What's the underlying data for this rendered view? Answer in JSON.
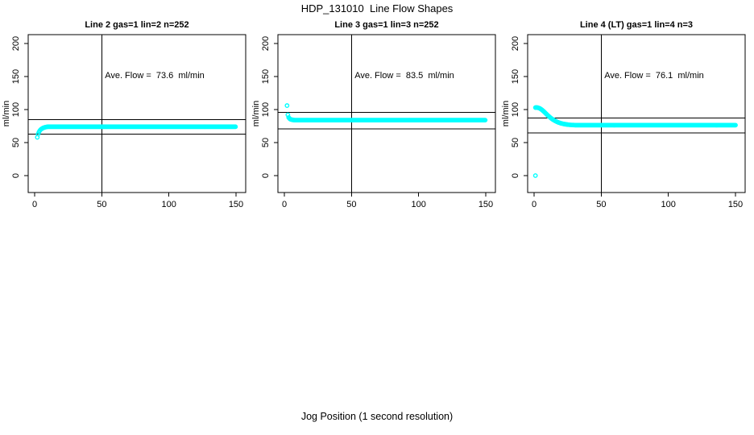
{
  "title": "HDP_131010  Line Flow Shapes",
  "xlabel": "Jog Position (1 second resolution)",
  "colors": {
    "points": "#00FFFF",
    "axis": "#000000",
    "background": "#FFFFFF",
    "text": "#000000"
  },
  "chart_data": [
    {
      "type": "scatter",
      "title": "Line 2 gas=1 lin=2 n=252",
      "annotation": "Ave. Flow =  73.6  ml/min",
      "ave_flow_ml_min": 73.6,
      "n": 252,
      "ylabel": "ml/min",
      "xlim": [
        0,
        150
      ],
      "ylim": [
        0,
        200
      ],
      "xticks": [
        0,
        50,
        100,
        150
      ],
      "yticks": [
        0,
        50,
        100,
        150,
        200
      ],
      "vline_x": 50,
      "ref_lines_y": [
        84.6,
        62.6
      ],
      "marker": "open-circle",
      "outlier_points": [],
      "transient_points": [
        [
          2,
          58
        ],
        [
          2.6,
          63
        ],
        [
          3.2,
          66
        ],
        [
          3.8,
          68
        ],
        [
          4.4,
          69.5
        ],
        [
          5,
          70.5
        ],
        [
          5.6,
          71.3
        ],
        [
          6.2,
          72
        ],
        [
          6.8,
          72.5
        ],
        [
          7.4,
          73
        ],
        [
          8,
          73.3
        ],
        [
          8.6,
          73.6
        ],
        [
          9.2,
          73.8
        ],
        [
          9.8,
          74
        ]
      ],
      "steady_state": {
        "x_start": 10.4,
        "x_end": 150,
        "x_step": 0.6,
        "value": 74
      }
    },
    {
      "type": "scatter",
      "title": "Line 3 gas=1 lin=3 n=252",
      "annotation": "Ave. Flow =  83.5  ml/min",
      "ave_flow_ml_min": 83.5,
      "n": 252,
      "ylabel": "ml/min",
      "xlim": [
        0,
        150
      ],
      "ylim": [
        0,
        200
      ],
      "xticks": [
        0,
        50,
        100,
        150
      ],
      "yticks": [
        0,
        50,
        100,
        150,
        200
      ],
      "vline_x": 50,
      "ref_lines_y": [
        96.0,
        71.0
      ],
      "marker": "open-circle",
      "outlier_points": [
        [
          2,
          106
        ]
      ],
      "transient_points": [
        [
          2.6,
          92
        ],
        [
          3.2,
          88
        ],
        [
          3.8,
          86.5
        ],
        [
          4.4,
          85.5
        ],
        [
          5,
          85
        ],
        [
          5.6,
          84.7
        ],
        [
          6.2,
          84.4
        ],
        [
          6.8,
          84.2
        ]
      ],
      "steady_state": {
        "x_start": 7.4,
        "x_end": 150,
        "x_step": 0.6,
        "value": 84
      }
    },
    {
      "type": "scatter",
      "title": "Line 4 (LT) gas=1 lin=4 n=3",
      "annotation": "Ave. Flow =  76.1  ml/min",
      "ave_flow_ml_min": 76.1,
      "n": 3,
      "ylabel": "ml/min",
      "xlim": [
        0,
        150
      ],
      "ylim": [
        0,
        200
      ],
      "xticks": [
        0,
        50,
        100,
        150
      ],
      "yticks": [
        0,
        50,
        100,
        150,
        200
      ],
      "vline_x": 50,
      "ref_lines_y": [
        87.5,
        64.7
      ],
      "marker": "open-circle",
      "outlier_points": [
        [
          1,
          0
        ]
      ],
      "transient_points": [
        [
          1,
          103
        ],
        [
          1.6,
          103.2
        ],
        [
          2.2,
          103
        ],
        [
          2.8,
          102.8
        ],
        [
          3.4,
          102.4
        ],
        [
          4,
          102
        ],
        [
          4.6,
          101.3
        ],
        [
          5.2,
          100.5
        ],
        [
          5.8,
          99.6
        ],
        [
          6.4,
          98.6
        ],
        [
          7,
          97.5
        ],
        [
          7.6,
          96.4
        ],
        [
          8.2,
          95.2
        ],
        [
          8.8,
          94
        ],
        [
          9.4,
          92.8
        ],
        [
          10,
          91.6
        ],
        [
          10.6,
          90.5
        ],
        [
          11.2,
          89.4
        ],
        [
          11.8,
          88.3
        ],
        [
          12.4,
          87.3
        ],
        [
          13,
          86.4
        ],
        [
          13.6,
          85.5
        ],
        [
          14.2,
          84.7
        ],
        [
          14.8,
          83.9
        ],
        [
          15.4,
          83.2
        ],
        [
          16,
          82.5
        ],
        [
          16.6,
          81.9
        ],
        [
          17.2,
          81.3
        ],
        [
          17.8,
          80.8
        ],
        [
          18.4,
          80.3
        ],
        [
          19,
          79.9
        ],
        [
          19.6,
          79.5
        ],
        [
          20.2,
          79.1
        ],
        [
          20.8,
          78.8
        ],
        [
          21.4,
          78.5
        ],
        [
          22,
          78.2
        ],
        [
          22.6,
          78
        ],
        [
          23.2,
          77.8
        ],
        [
          23.8,
          77.6
        ],
        [
          24.4,
          77.4
        ],
        [
          25,
          77.2
        ],
        [
          26,
          77
        ],
        [
          27,
          76.8
        ],
        [
          28,
          76.7
        ],
        [
          29,
          76.6
        ],
        [
          30,
          76.5
        ]
      ],
      "steady_state": {
        "x_start": 30.6,
        "x_end": 150,
        "x_step": 0.6,
        "value": 76.4
      }
    }
  ]
}
